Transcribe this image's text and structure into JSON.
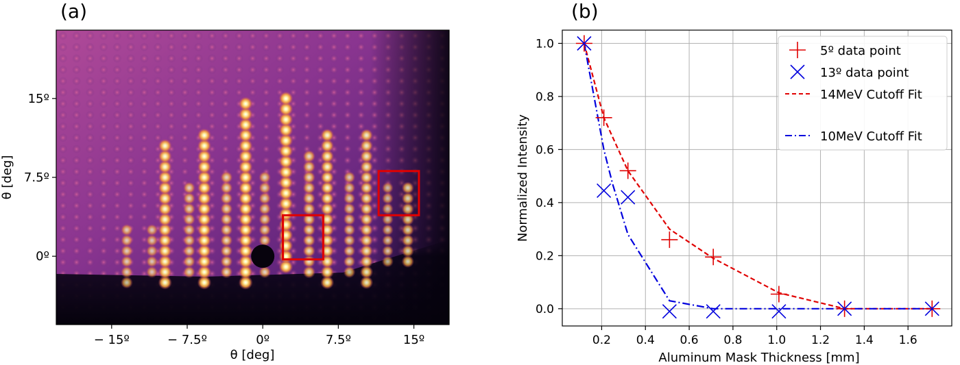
{
  "chart_data": [
    {
      "type": "heatmap",
      "panel_label": "(a)",
      "title": "",
      "xlabel": "θ [deg]",
      "ylabel": "θ [deg]",
      "xlim": [
        -20.5,
        18.5
      ],
      "ylim": [
        -6.5,
        21.5
      ],
      "x_ticks": [
        -15,
        -7.5,
        0,
        7.5,
        15
      ],
      "x_tick_labels": [
        "− 15º",
        "− 7.5º",
        "0º",
        "7.5º",
        "15º"
      ],
      "y_ticks": [
        0,
        7.5,
        15
      ],
      "y_tick_labels": [
        "0º",
        "7.5º",
        "15º"
      ],
      "colormap": "inferno",
      "boxes": [
        {
          "x0": 2,
          "x1": 6,
          "y0": -0.3,
          "y1": 3.9,
          "color": "#e00000"
        },
        {
          "x0": 11.5,
          "x1": 15.5,
          "y0": 3.9,
          "y1": 8.1,
          "color": "#e00000"
        }
      ],
      "bright_columns": [
        {
          "x": -13.5,
          "y_min": -2.5,
          "y_max": 3.2,
          "level": 0.45
        },
        {
          "x": -11.0,
          "y_min": -1.5,
          "y_max": 3.0,
          "level": 0.4
        },
        {
          "x": -9.7,
          "y_min": -2.5,
          "y_max": 11.0,
          "level": 0.85
        },
        {
          "x": -7.3,
          "y_min": -1.5,
          "y_max": 7.0,
          "level": 0.5
        },
        {
          "x": -5.8,
          "y_min": -2.5,
          "y_max": 11.5,
          "level": 0.9
        },
        {
          "x": -3.6,
          "y_min": -1.5,
          "y_max": 7.5,
          "level": 0.55
        },
        {
          "x": -1.7,
          "y_min": -2.5,
          "y_max": 15.3,
          "level": 0.95
        },
        {
          "x": 0.2,
          "y_min": -1.5,
          "y_max": 7.5,
          "level": 0.5
        },
        {
          "x": 2.3,
          "y_min": -1.0,
          "y_max": 15.0,
          "level": 1.0
        },
        {
          "x": 4.6,
          "y_min": -1.5,
          "y_max": 9.5,
          "level": 0.6
        },
        {
          "x": 6.4,
          "y_min": -2.5,
          "y_max": 11.5,
          "level": 0.8
        },
        {
          "x": 8.6,
          "y_min": -1.5,
          "y_max": 7.5,
          "level": 0.45
        },
        {
          "x": 10.3,
          "y_min": -2.5,
          "y_max": 11.5,
          "level": 0.7
        },
        {
          "x": 12.4,
          "y_min": -0.5,
          "y_max": 7.0,
          "level": 0.35
        },
        {
          "x": 14.4,
          "y_min": -0.5,
          "y_max": 7.0,
          "level": 0.55
        }
      ]
    },
    {
      "type": "line",
      "panel_label": "(b)",
      "title": "",
      "xlabel": "Aluminum Mask Thickness [mm]",
      "ylabel": "Normalized Intensity",
      "xlim": [
        0.02,
        1.8
      ],
      "ylim": [
        -0.065,
        1.05
      ],
      "x_ticks": [
        0.2,
        0.4,
        0.6,
        0.8,
        1.0,
        1.2,
        1.4,
        1.6
      ],
      "x_tick_labels": [
        "0.2",
        "0.4",
        "0.6",
        "0.8",
        "1.0",
        "1.2",
        "1.4",
        "1.6"
      ],
      "y_ticks": [
        0.0,
        0.2,
        0.4,
        0.6,
        0.8,
        1.0
      ],
      "y_tick_labels": [
        "0.0",
        "0.2",
        "0.4",
        "0.6",
        "0.8",
        "1.0"
      ],
      "grid": true,
      "legend_position": "top-right",
      "series": [
        {
          "name": "5º data point",
          "kind": "marker",
          "marker": "+",
          "color": "#e00000",
          "x": [
            0.12,
            0.21,
            0.32,
            0.51,
            0.71,
            1.01,
            1.31,
            1.71
          ],
          "y": [
            1.0,
            0.72,
            0.52,
            0.26,
            0.195,
            0.055,
            0.0,
            0.0
          ]
        },
        {
          "name": "13º data point",
          "kind": "marker",
          "marker": "x",
          "color": "#0000dd",
          "x": [
            0.12,
            0.21,
            0.32,
            0.51,
            0.71,
            1.01,
            1.31,
            1.71
          ],
          "y": [
            1.0,
            0.445,
            0.42,
            -0.01,
            -0.01,
            -0.01,
            0.0,
            0.0
          ]
        },
        {
          "name": "14MeV Cutoff Fit",
          "kind": "line",
          "dash": "dashed",
          "color": "#e00000",
          "x": [
            0.12,
            0.21,
            0.32,
            0.51,
            0.71,
            1.01,
            1.31,
            1.71
          ],
          "y": [
            1.0,
            0.72,
            0.52,
            0.3,
            0.19,
            0.06,
            0.0,
            0.0
          ]
        },
        {
          "name": "10MeV Cutoff Fit",
          "kind": "line",
          "dash": "dashdot",
          "color": "#0000dd",
          "x": [
            0.12,
            0.21,
            0.25,
            0.32,
            0.51,
            0.71,
            1.01,
            1.31,
            1.71
          ],
          "y": [
            1.0,
            0.6,
            0.47,
            0.28,
            0.03,
            0.0,
            0.0,
            0.0,
            0.0
          ]
        }
      ]
    }
  ]
}
